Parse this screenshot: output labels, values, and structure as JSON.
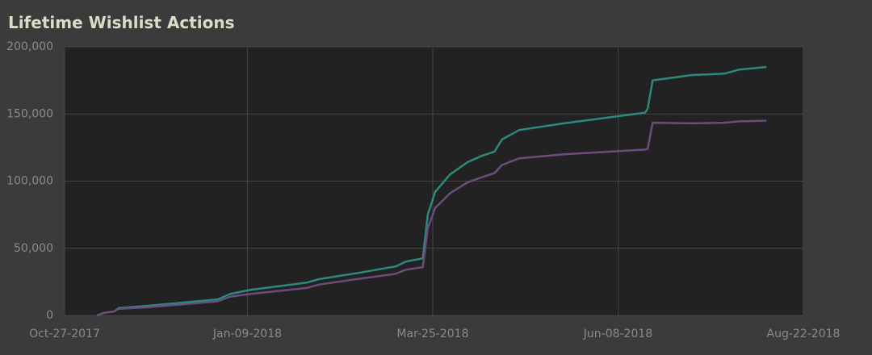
{
  "chart_data": {
    "type": "line",
    "title": "Lifetime Wishlist Actions",
    "x": [
      "2017-11-09",
      "2017-11-12",
      "2017-11-16",
      "2017-11-18",
      "2017-11-29",
      "2017-12-28",
      "2018-01-02",
      "2018-01-10",
      "2018-02-02",
      "2018-02-07",
      "2018-02-24",
      "2018-03-10",
      "2018-03-14",
      "2018-03-21",
      "2018-03-23",
      "2018-03-26",
      "2018-04-01",
      "2018-04-08",
      "2018-04-14",
      "2018-04-19",
      "2018-04-22",
      "2018-04-29",
      "2018-05-17",
      "2018-06-19",
      "2018-06-20",
      "2018-06-22",
      "2018-07-08",
      "2018-07-21",
      "2018-07-27",
      "2018-08-07"
    ],
    "series": [
      {
        "color": "#2b8a7d",
        "values": [
          0,
          2000,
          3000,
          5500,
          7000,
          12000,
          16000,
          19000,
          24500,
          27000,
          32000,
          36500,
          40000,
          42500,
          75000,
          92000,
          105000,
          114000,
          119000,
          122000,
          131000,
          138000,
          143000,
          151000,
          154000,
          175000,
          179000,
          180000,
          183000,
          185000
        ]
      },
      {
        "color": "#6b4c7c",
        "values": [
          0,
          2000,
          3000,
          5000,
          6000,
          10500,
          14000,
          16000,
          20500,
          23000,
          27500,
          31000,
          34000,
          36000,
          65000,
          80000,
          91000,
          99000,
          103000,
          106000,
          112000,
          117000,
          120000,
          123500,
          124000,
          143500,
          143000,
          143500,
          144500,
          145000
        ]
      }
    ],
    "xlim": [
      "2017-10-27",
      "2018-08-22"
    ],
    "xticks": [
      {
        "value": "2017-10-27",
        "label": "Oct-27-2017"
      },
      {
        "value": "2018-01-09",
        "label": "Jan-09-2018"
      },
      {
        "value": "2018-03-25",
        "label": "Mar-25-2018"
      },
      {
        "value": "2018-06-08",
        "label": "Jun-08-2018"
      },
      {
        "value": "2018-08-22",
        "label": "Aug-22-2018"
      }
    ],
    "ylim": [
      0,
      200000
    ],
    "yticks": [
      {
        "value": 0,
        "label": "0"
      },
      {
        "value": 50000,
        "label": "50,000"
      },
      {
        "value": 100000,
        "label": "100,000"
      },
      {
        "value": 150000,
        "label": "150,000"
      },
      {
        "value": 200000,
        "label": "200,000"
      }
    ],
    "grid": true
  }
}
